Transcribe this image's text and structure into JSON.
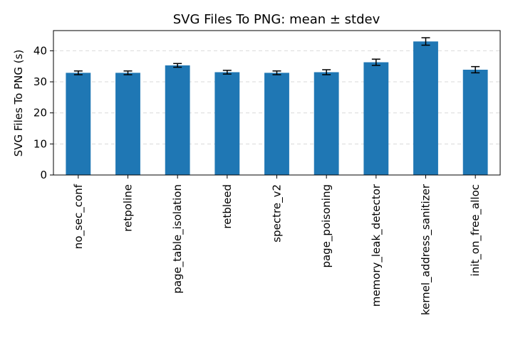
{
  "chart_data": {
    "type": "bar",
    "title": "SVG Files To PNG: mean ± stdev",
    "xlabel": "",
    "ylabel": "SVG Files To PNG (s)",
    "ylim": [
      0,
      46.5
    ],
    "yticks": [
      0,
      10,
      20,
      30,
      40
    ],
    "grid": "y-dashed",
    "legend": "none",
    "categories": [
      "no_sec_conf",
      "retpoline",
      "page_table_isolation",
      "retbleed",
      "spectre_v2",
      "page_poisoning",
      "memory_leak_detector",
      "kernel_address_sanitizer",
      "init_on_free_alloc"
    ],
    "values": [
      32.9,
      32.9,
      35.3,
      33.1,
      32.9,
      33.1,
      36.3,
      43.0,
      33.9
    ],
    "errors": [
      0.6,
      0.6,
      0.6,
      0.6,
      0.6,
      0.8,
      1.0,
      1.2,
      1.0
    ],
    "colors": {
      "bar": "#1f77b4",
      "error": "#000000",
      "grid": "#d9d9d9",
      "axis": "#000000"
    }
  }
}
